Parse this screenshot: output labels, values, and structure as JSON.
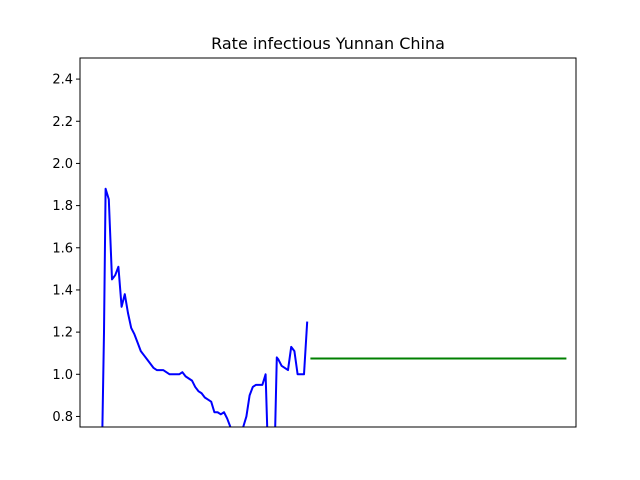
{
  "chart_data": {
    "type": "line",
    "title": "Rate infectious Yunnan China",
    "xlabel": "",
    "ylabel": "",
    "xlim": [
      0,
      155
    ],
    "ylim": [
      0.75,
      2.5
    ],
    "yticks": [
      0.8,
      1.0,
      1.2,
      1.4,
      1.6,
      1.8,
      2.0,
      2.2,
      2.4
    ],
    "yticklabels": [
      "0.8",
      "1.0",
      "1.2",
      "1.4",
      "1.6",
      "1.8",
      "2.0",
      "2.2",
      "2.4"
    ],
    "show_xticks": false,
    "grid": false,
    "series": [
      {
        "color": "#0000ff",
        "segments": [
          [
            [
              7,
              0.75
            ],
            [
              7.5,
              1.2
            ],
            [
              8,
              1.88
            ],
            [
              9,
              1.83
            ],
            [
              10,
              1.45
            ],
            [
              11,
              1.47
            ],
            [
              12,
              1.51
            ],
            [
              13,
              1.32
            ],
            [
              14,
              1.38
            ],
            [
              15,
              1.29
            ],
            [
              16,
              1.22
            ],
            [
              17,
              1.19
            ],
            [
              18,
              1.15
            ],
            [
              19,
              1.11
            ],
            [
              20,
              1.09
            ],
            [
              21,
              1.07
            ],
            [
              22,
              1.05
            ],
            [
              23,
              1.03
            ],
            [
              24,
              1.02
            ],
            [
              25,
              1.02
            ],
            [
              26,
              1.02
            ],
            [
              27,
              1.01
            ],
            [
              28,
              1.0
            ],
            [
              29,
              1.0
            ],
            [
              30,
              1.0
            ],
            [
              31,
              1.0
            ],
            [
              32,
              1.01
            ],
            [
              33,
              0.99
            ],
            [
              34,
              0.98
            ],
            [
              35,
              0.97
            ],
            [
              36,
              0.94
            ],
            [
              37,
              0.92
            ],
            [
              38,
              0.91
            ],
            [
              39,
              0.89
            ],
            [
              40,
              0.88
            ],
            [
              41,
              0.87
            ],
            [
              42,
              0.82
            ],
            [
              43,
              0.82
            ],
            [
              44,
              0.81
            ],
            [
              45,
              0.82
            ],
            [
              46,
              0.79
            ],
            [
              47,
              0.75
            ]
          ],
          [
            [
              51,
              0.75
            ],
            [
              52,
              0.8
            ],
            [
              53,
              0.9
            ],
            [
              54,
              0.94
            ],
            [
              55,
              0.95
            ],
            [
              56,
              0.95
            ],
            [
              57,
              0.95
            ],
            [
              58,
              1.0
            ],
            [
              58.5,
              0.75
            ]
          ],
          [
            [
              61,
              0.75
            ],
            [
              61.5,
              1.08
            ],
            [
              62,
              1.07
            ],
            [
              63,
              1.04
            ],
            [
              64,
              1.03
            ],
            [
              65,
              1.02
            ],
            [
              66,
              1.13
            ],
            [
              67,
              1.11
            ],
            [
              68,
              1.0
            ],
            [
              69,
              1.0
            ],
            [
              70,
              1.0
            ],
            [
              71,
              1.25
            ]
          ]
        ]
      },
      {
        "color": "#008000",
        "segments": [
          [
            [
              72,
              1.075
            ],
            [
              152,
              1.075
            ]
          ]
        ]
      }
    ]
  }
}
